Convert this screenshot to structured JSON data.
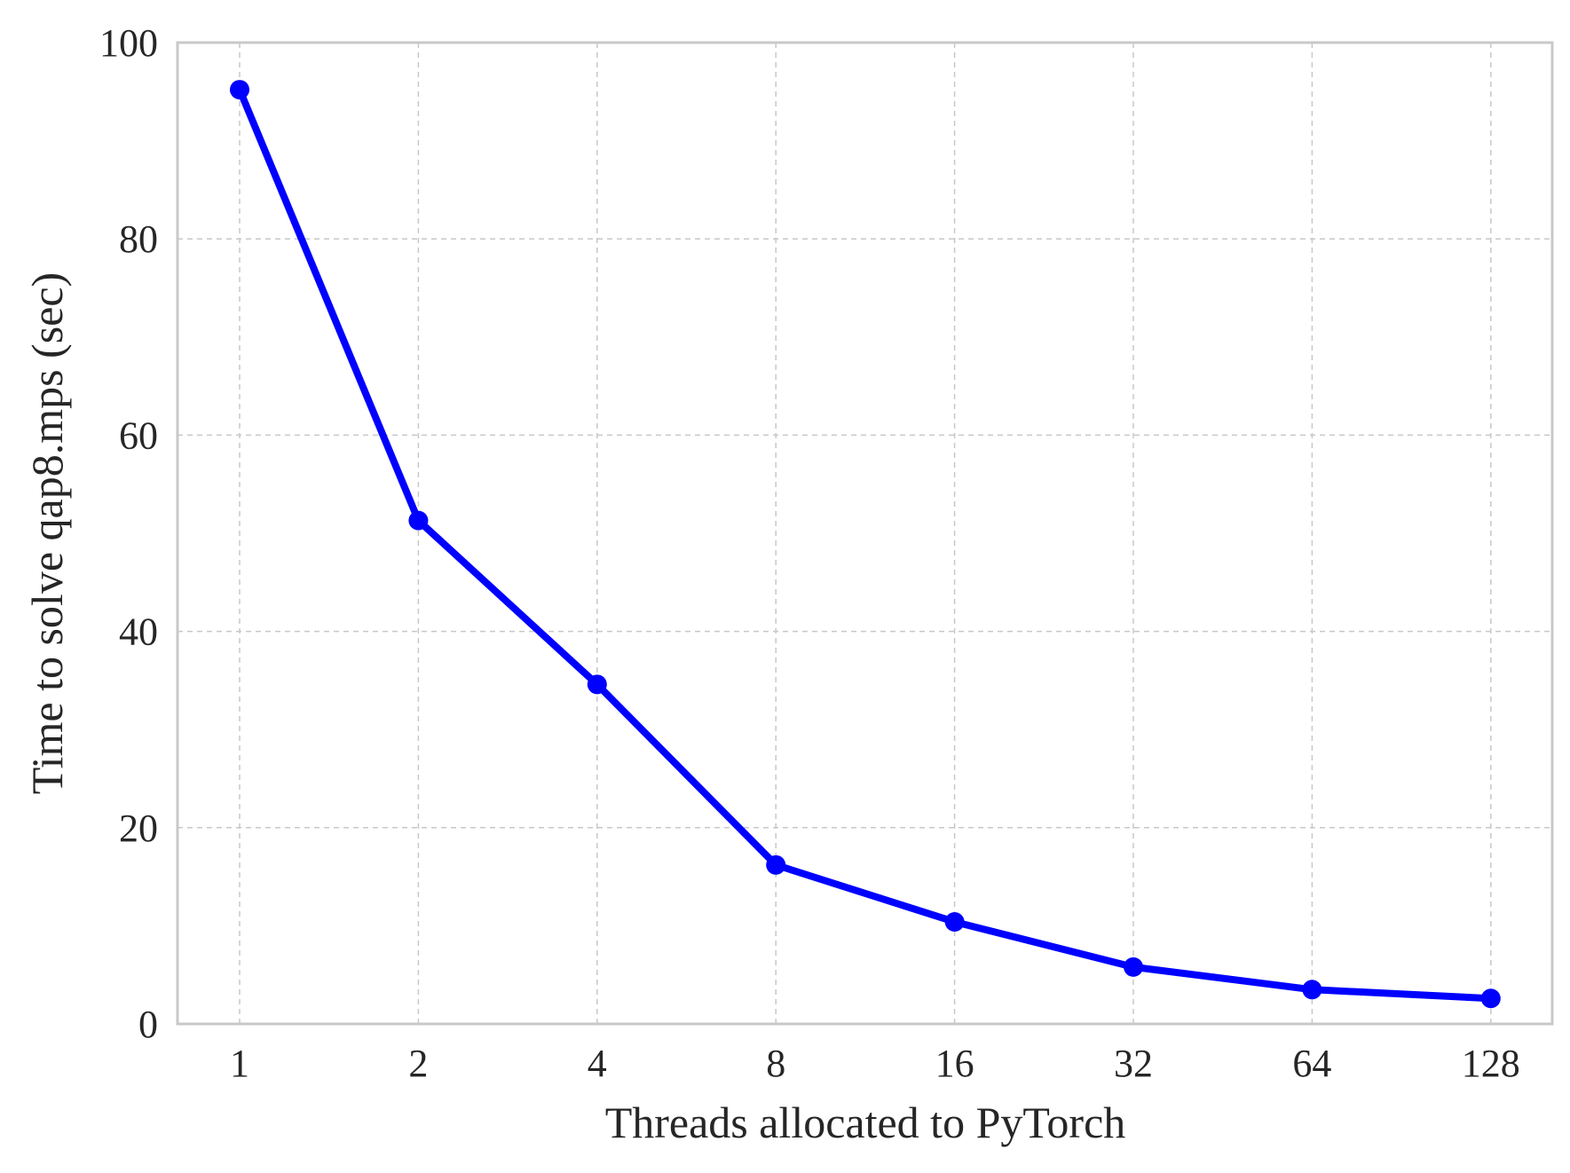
{
  "chart_data": {
    "type": "line",
    "xlabel": "Threads allocated to PyTorch",
    "ylabel": "Time to solve qap8.mps (sec)",
    "categories": [
      "1",
      "2",
      "4",
      "8",
      "16",
      "32",
      "64",
      "128"
    ],
    "x": [
      1,
      2,
      4,
      8,
      16,
      32,
      64,
      128
    ],
    "series": [
      {
        "values": [
          95.2,
          51.3,
          34.6,
          16.2,
          10.4,
          5.8,
          3.5,
          2.6
        ],
        "color": "#0000ff",
        "marker": "circle"
      }
    ],
    "ylim": [
      0,
      100
    ],
    "yticks": [
      0,
      20,
      40,
      60,
      80,
      100
    ],
    "xscale": "log2",
    "grid": true,
    "legend": "none"
  }
}
